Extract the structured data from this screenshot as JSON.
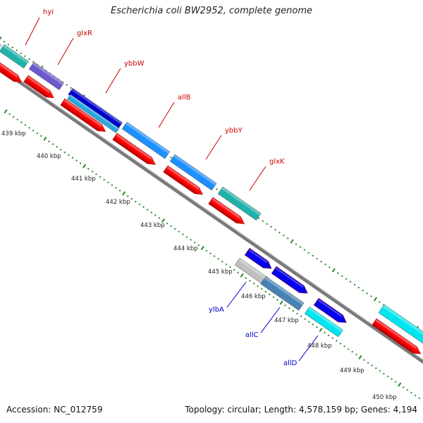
{
  "title": "Escherichia coli BW2952, complete genome",
  "footer": {
    "accession": "Accession: NC_012759",
    "topology": "Topology: circular; Length: 4,578,159 bp; Genes: 4,194"
  },
  "colors": {
    "backbone": "#888888",
    "tick_dots": "#228B22",
    "forward_label": "#cc0000",
    "reverse_label": "#0000cc",
    "cds": "#ff0000"
  },
  "scale_labels": [
    "439 kbp",
    "440 kbp",
    "441 kbp",
    "442 kbp",
    "443 kbp",
    "444 kbp",
    "445 kbp",
    "446 kbp",
    "447 kbp",
    "448 kbp",
    "449 kbp",
    "450 kbp"
  ],
  "forward_genes": [
    {
      "name": "hyi",
      "color": "#20b2aa"
    },
    {
      "name": "glxR",
      "color": "#6a5acd"
    },
    {
      "name": "ybbW",
      "color": "#0000cd"
    },
    {
      "name": "allB",
      "color": "#1e90ff"
    },
    {
      "name": "ybbY",
      "color": "#1e90ff"
    },
    {
      "name": "glxK",
      "color": "#20b2aa"
    }
  ],
  "reverse_genes": [
    {
      "name": "ylbA",
      "color": "#c0c0c0"
    },
    {
      "name": "allC",
      "color": "#4682b4"
    },
    {
      "name": "allD",
      "color": "#00e5ee"
    }
  ]
}
